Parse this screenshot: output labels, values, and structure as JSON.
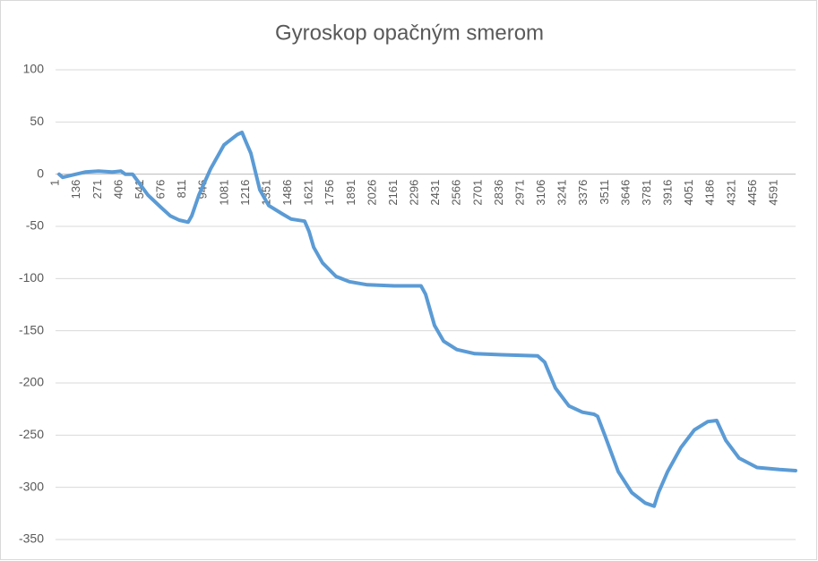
{
  "chart_data": {
    "type": "line",
    "title": "Gyroskop opačným smerom",
    "x": [
      23,
      46,
      103,
      189,
      275,
      361,
      418,
      446,
      492,
      532,
      590,
      675,
      733,
      790,
      847,
      870,
      916,
      990,
      1076,
      1162,
      1191,
      1219,
      1248,
      1305,
      1362,
      1448,
      1505,
      1591,
      1620,
      1649,
      1706,
      1792,
      1877,
      1992,
      2164,
      2335,
      2364,
      2421,
      2479,
      2564,
      2679,
      2851,
      3080,
      3125,
      3194,
      3280,
      3366,
      3440,
      3463,
      3509,
      3595,
      3681,
      3767,
      3824,
      3852,
      3910,
      3995,
      4081,
      4167,
      4224,
      4282,
      4367,
      4482,
      4625,
      4728
    ],
    "series": [
      {
        "color": "#5b9bd5",
        "values": [
          0,
          -3,
          -1,
          2,
          3,
          2,
          3,
          0,
          0,
          -8,
          -20,
          -32,
          -40,
          -44,
          -46,
          -40,
          -20,
          5,
          28,
          38,
          40,
          30,
          20,
          -15,
          -30,
          -38,
          -43,
          -45,
          -55,
          -70,
          -85,
          -98,
          -103,
          -106,
          -107,
          -107,
          -115,
          -145,
          -160,
          -168,
          -172,
          -173,
          -174,
          -180,
          -205,
          -222,
          -228,
          -230,
          -232,
          -250,
          -285,
          -305,
          -315,
          -318,
          -305,
          -285,
          -262,
          -245,
          -237,
          -236,
          -255,
          -272,
          -281,
          -283,
          -284
        ]
      }
    ],
    "xlim": [
      0,
      4728
    ],
    "xticks": [
      1,
      136,
      271,
      406,
      541,
      676,
      811,
      946,
      1081,
      1216,
      1351,
      1486,
      1621,
      1756,
      1891,
      2026,
      2161,
      2296,
      2431,
      2566,
      2701,
      2836,
      2971,
      3106,
      3241,
      3376,
      3511,
      3646,
      3781,
      3916,
      4051,
      4186,
      4321,
      4456,
      4591
    ],
    "ylim": [
      -350,
      100
    ],
    "yticks": [
      -350,
      -300,
      -250,
      -200,
      -150,
      -100,
      -50,
      0,
      50,
      100
    ],
    "grid": true
  }
}
